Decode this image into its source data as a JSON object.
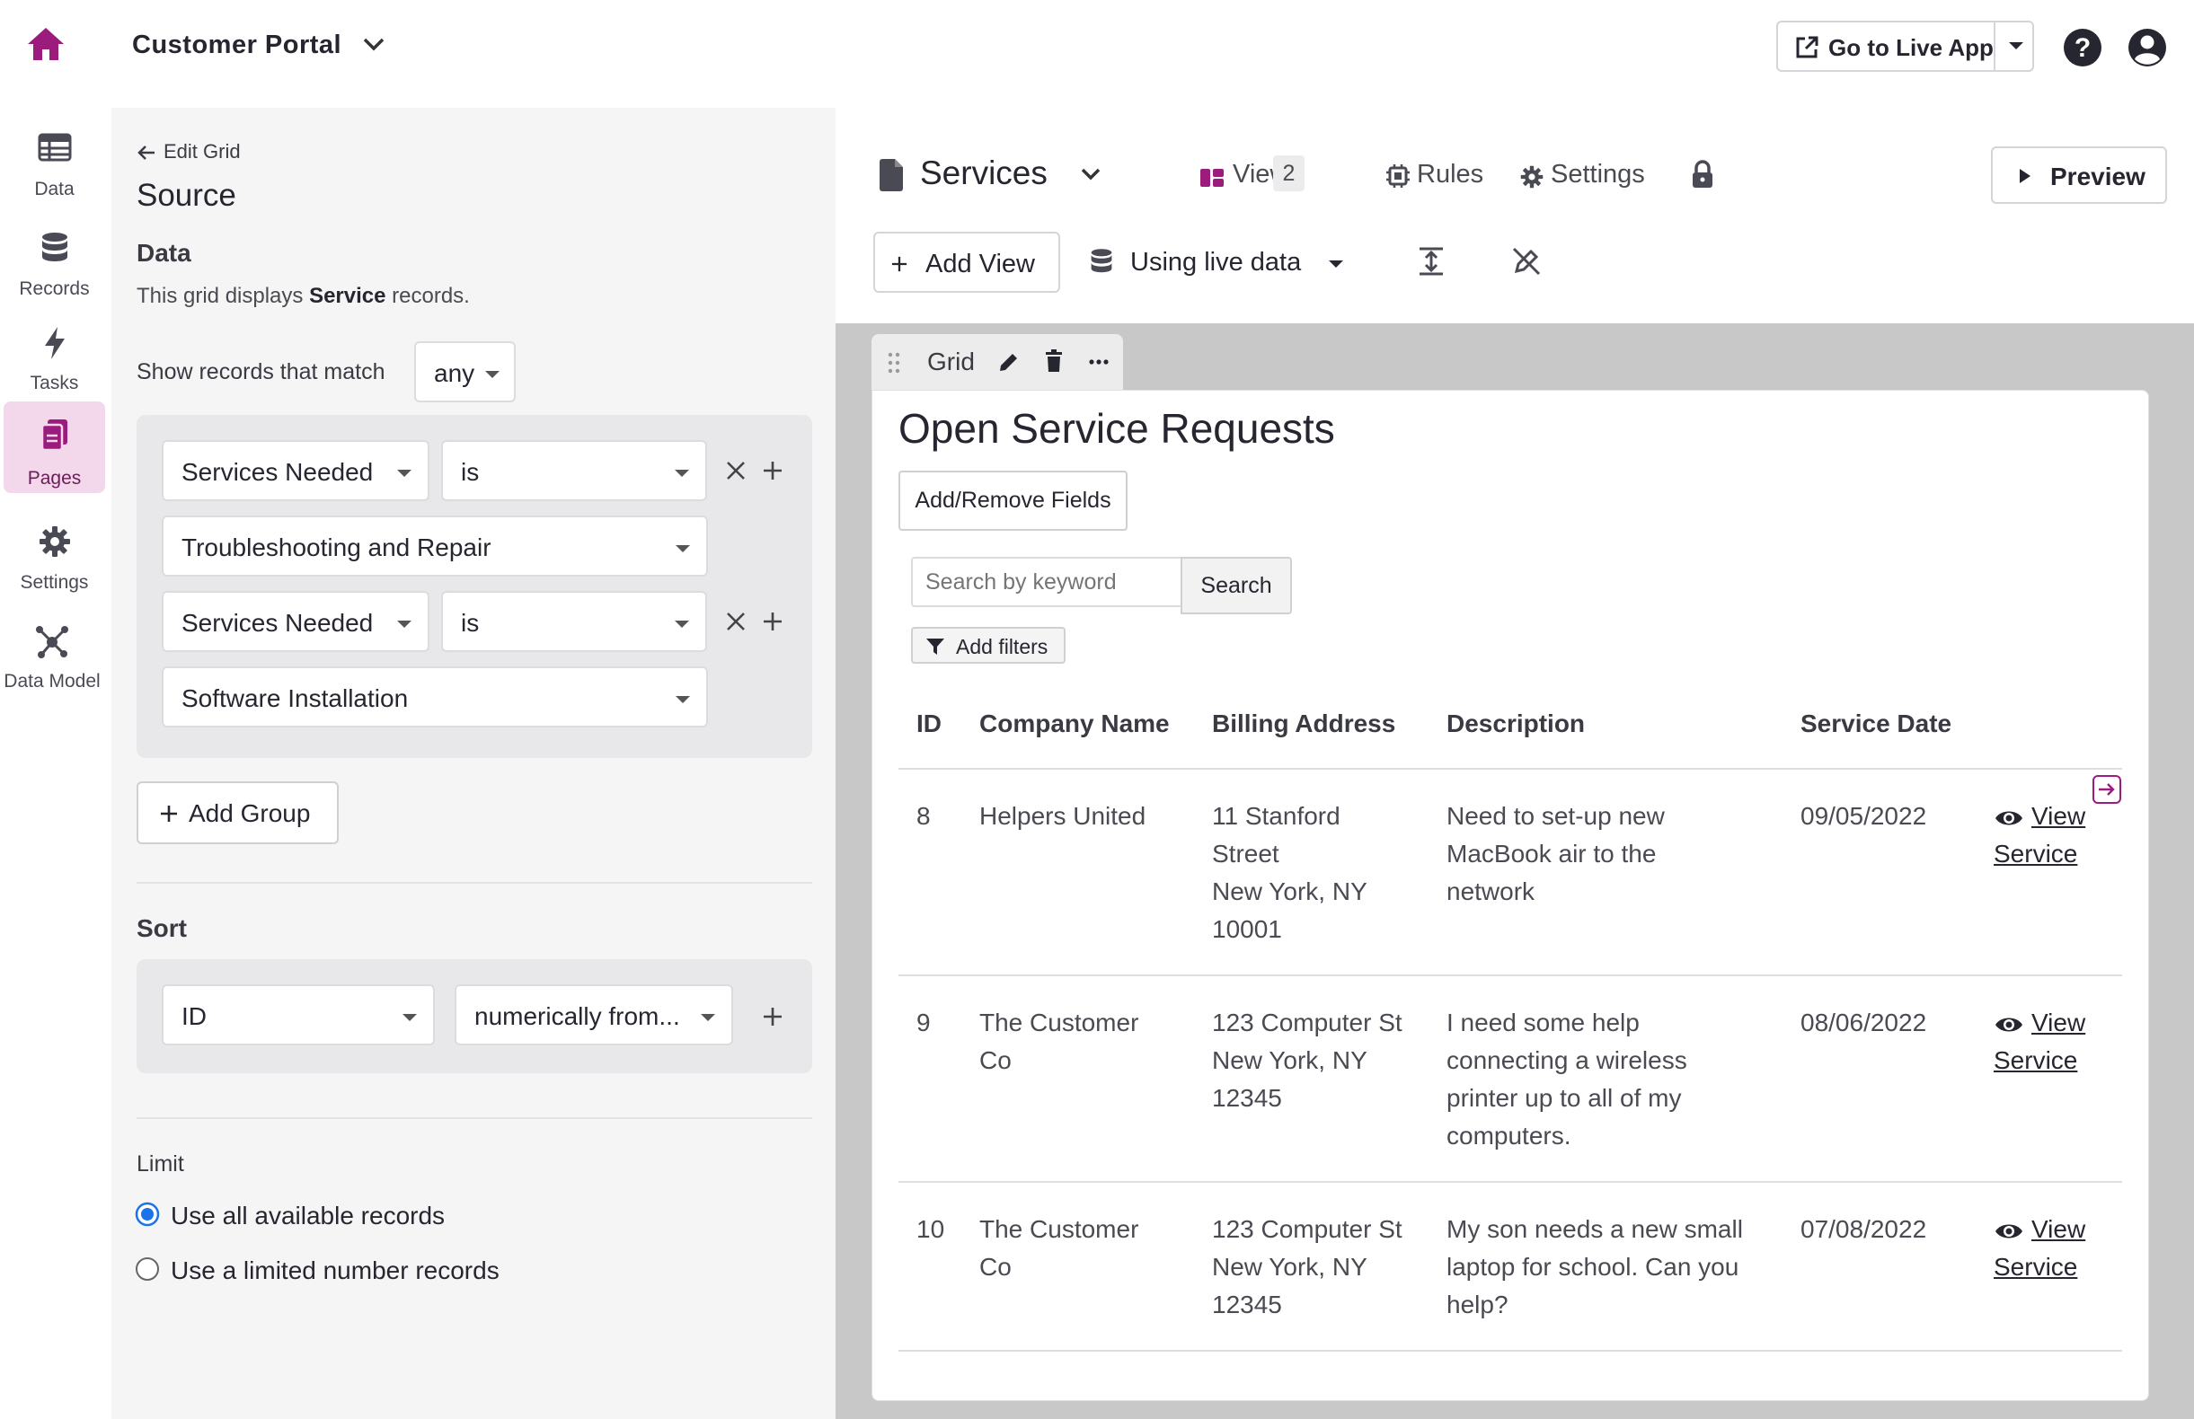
{
  "app": {
    "title": "Customer Portal",
    "live_btn": "Go to Live App"
  },
  "nav": [
    {
      "label": "Data",
      "icon": "table-icon"
    },
    {
      "label": "Records",
      "icon": "database-icon"
    },
    {
      "label": "Tasks",
      "icon": "bolt-icon"
    },
    {
      "label": "Pages",
      "icon": "pages-icon"
    },
    {
      "label": "Settings",
      "icon": "gear-icon"
    },
    {
      "label": "Data Model",
      "icon": "data-model-icon"
    }
  ],
  "source": {
    "back": "Edit Grid",
    "title": "Source",
    "data_heading": "Data",
    "desc_pre": "This grid displays ",
    "desc_bold": "Service",
    "desc_post": " records.",
    "match_label": "Show records that match",
    "match_value": "any",
    "filters": [
      {
        "field": "Services Needed",
        "operator": "is",
        "value": "Troubleshooting and Repair"
      },
      {
        "field": "Services Needed",
        "operator": "is",
        "value": "Software Installation"
      }
    ],
    "add_group": "Add Group",
    "sort_heading": "Sort",
    "sort_field": "ID",
    "sort_order": "numerically from...",
    "limit_heading": "Limit",
    "limit_opt1": "Use all available records",
    "limit_opt2": "Use a limited number records"
  },
  "page": {
    "title": "Services",
    "views_label": "Views",
    "views_count": "2",
    "rules": "Rules",
    "settings": "Settings",
    "preview": "Preview",
    "add_view": "Add View",
    "live_data": "Using live data"
  },
  "grid": {
    "tab_label": "Grid",
    "title": "Open Service Requests",
    "add_remove": "Add/Remove Fields",
    "search_placeholder": "Search by keyword",
    "search_btn": "Search",
    "add_filters": "Add filters",
    "columns": [
      "ID",
      "Company Name",
      "Billing Address",
      "Description",
      "Service Date"
    ],
    "rows": [
      {
        "id": "8",
        "company": "Helpers United",
        "address": [
          "11 Stanford",
          "Street",
          "New York, NY",
          "10001"
        ],
        "description": [
          "Need to set-up new",
          "MacBook air to the",
          "network"
        ],
        "date": "09/05/2022",
        "link1": "View",
        "link2": "Service"
      },
      {
        "id": "9",
        "company": [
          "The Customer",
          "Co"
        ],
        "address": [
          "123 Computer St",
          "New York, NY",
          "12345"
        ],
        "description": [
          "I need some help",
          "connecting a wireless",
          "printer up to all of my",
          "computers."
        ],
        "date": "08/06/2022",
        "link1": "View",
        "link2": "Service"
      },
      {
        "id": "10",
        "company": [
          "The Customer",
          "Co"
        ],
        "address": [
          "123 Computer St",
          "New York, NY",
          "12345"
        ],
        "description": [
          "My son needs a new small",
          "laptop for school. Can you",
          "help?"
        ],
        "date": "07/08/2022",
        "link1": "View",
        "link2": "Service"
      }
    ]
  },
  "colors": {
    "brand": "#9b1c7d",
    "accent_bg": "#f3d7ea"
  }
}
